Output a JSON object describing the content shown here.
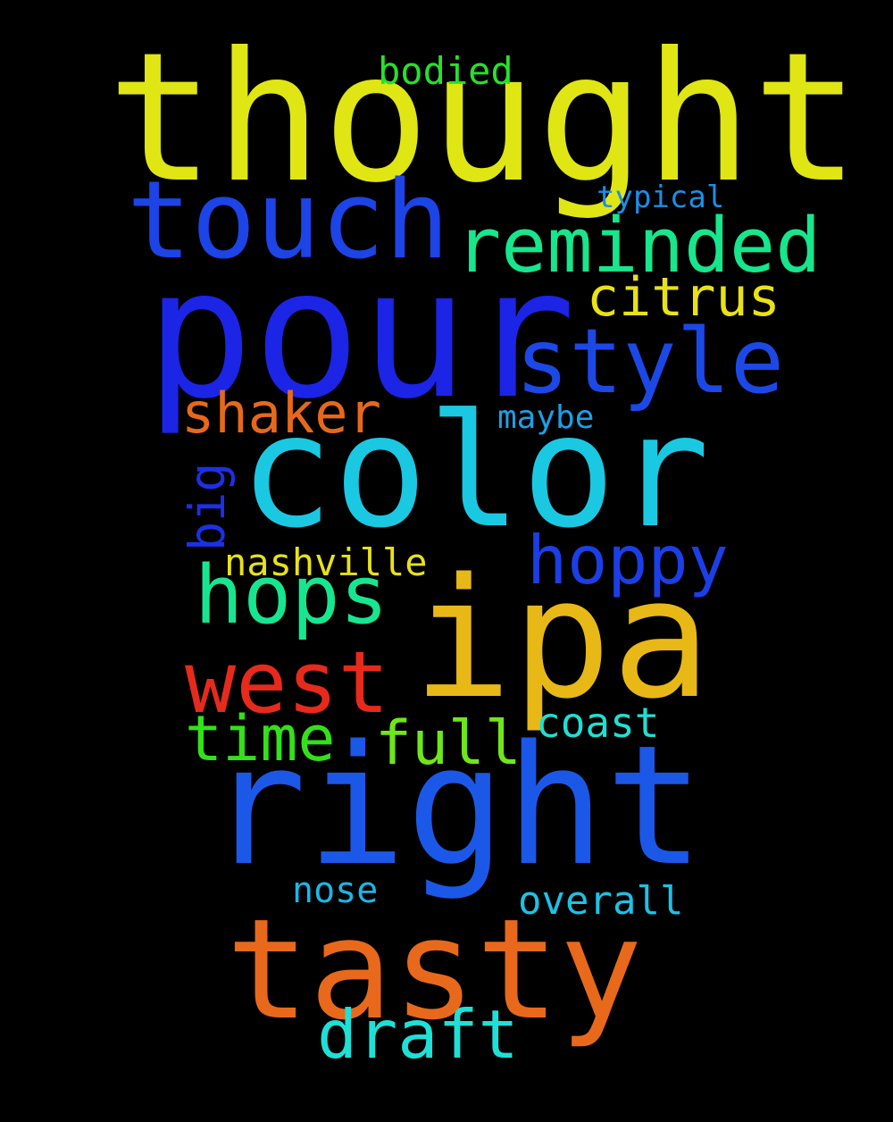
{
  "words": {
    "thought": {
      "text": "thought",
      "color": "#dfe614"
    },
    "pour": {
      "text": "pour",
      "color": "#1c24e6"
    },
    "color": {
      "text": "color",
      "color": "#1bc8e2"
    },
    "ipa": {
      "text": "ipa",
      "color": "#e8b817"
    },
    "right": {
      "text": "right",
      "color": "#1c58e8"
    },
    "tasty": {
      "text": "tasty",
      "color": "#e8691b"
    },
    "touch": {
      "text": "touch",
      "color": "#1c44e6"
    },
    "reminded": {
      "text": "reminded",
      "color": "#17e68c"
    },
    "style": {
      "text": "style",
      "color": "#1c48e6"
    },
    "hops": {
      "text": "hops",
      "color": "#17e690"
    },
    "west": {
      "text": "west",
      "color": "#e62a1c"
    },
    "hoppy": {
      "text": "hoppy",
      "color": "#1c3ee6"
    },
    "draft": {
      "text": "draft",
      "color": "#1ee0d6"
    },
    "time": {
      "text": "time",
      "color": "#34e01a"
    },
    "full": {
      "text": "full",
      "color": "#6ee61b"
    },
    "shaker": {
      "text": "shaker",
      "color": "#e6691b"
    },
    "citrus": {
      "text": "citrus",
      "color": "#e8e217"
    },
    "bodied": {
      "text": "bodied",
      "color": "#28e02c"
    },
    "typical": {
      "text": "typical",
      "color": "#1c8ee6"
    },
    "maybe": {
      "text": "maybe",
      "color": "#1ca0e6"
    },
    "nashville": {
      "text": "nashville",
      "color": "#e8e217"
    },
    "coast": {
      "text": "coast",
      "color": "#1ee0d2"
    },
    "nose": {
      "text": "nose",
      "color": "#1cb6e6"
    },
    "overall": {
      "text": "overall",
      "color": "#1cc2e6"
    },
    "big": {
      "text": "big",
      "color": "#1c30e6"
    }
  }
}
